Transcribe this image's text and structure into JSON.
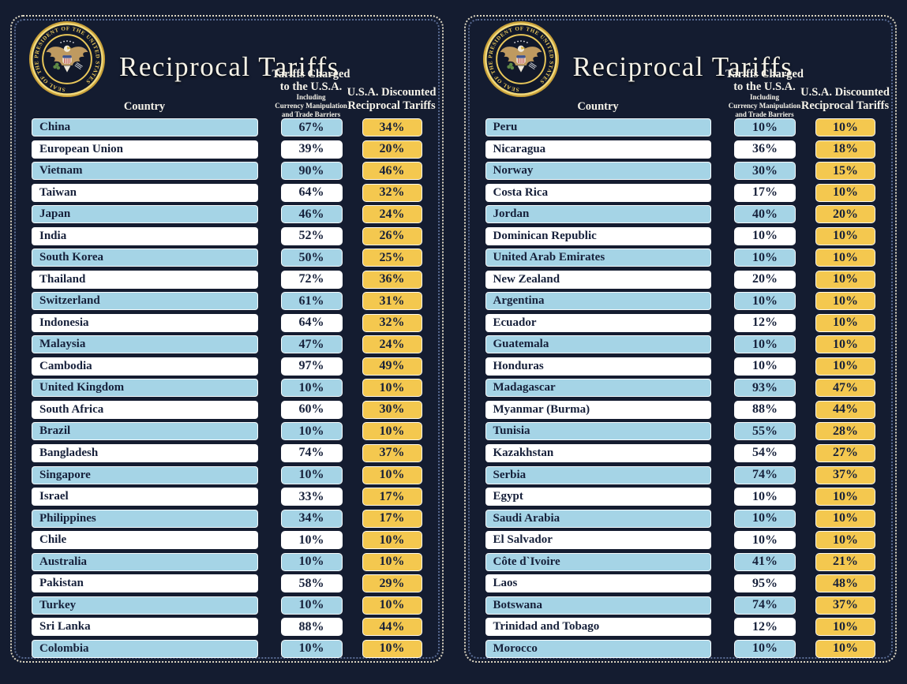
{
  "header": {
    "title": "Reciprocal Tariffs",
    "country_label": "Country",
    "charged_label_lines": [
      "Tariffs Charged",
      "to the U.S.A."
    ],
    "charged_sub_lines": [
      "Including",
      "Currency Manipulation",
      "and Trade Barriers"
    ],
    "discount_label_lines": [
      "U.S.A. Discounted",
      "Reciprocal Tariffs"
    ]
  },
  "seal": {
    "ring_text": "SEAL OF THE PRESIDENT OF THE UNITED STATES"
  },
  "unit": "%",
  "colors": {
    "background": "#121a2c",
    "panel": "#141c30",
    "row_blue": "#a5d4e6",
    "row_white": "#ffffff",
    "discount_yellow": "#f4c84f",
    "bar_text": "#16203a",
    "header_text": "#f5f2e8",
    "border_outer_dots": "#ddd6c2",
    "border_inner_dots": "#5a6c94",
    "seal_gold": "#e9c75a"
  },
  "chart_data": {
    "type": "table",
    "title": "Reciprocal Tariffs",
    "columns": [
      "Country",
      "Tariffs Charged to the U.S.A. Including Currency Manipulation and Trade Barriers",
      "U.S.A. Discounted Reciprocal Tariffs"
    ],
    "value_unit": "%",
    "panels": [
      {
        "rows": [
          [
            "China",
            67,
            34
          ],
          [
            "European Union",
            39,
            20
          ],
          [
            "Vietnam",
            90,
            46
          ],
          [
            "Taiwan",
            64,
            32
          ],
          [
            "Japan",
            46,
            24
          ],
          [
            "India",
            52,
            26
          ],
          [
            "South Korea",
            50,
            25
          ],
          [
            "Thailand",
            72,
            36
          ],
          [
            "Switzerland",
            61,
            31
          ],
          [
            "Indonesia",
            64,
            32
          ],
          [
            "Malaysia",
            47,
            24
          ],
          [
            "Cambodia",
            97,
            49
          ],
          [
            "United Kingdom",
            10,
            10
          ],
          [
            "South Africa",
            60,
            30
          ],
          [
            "Brazil",
            10,
            10
          ],
          [
            "Bangladesh",
            74,
            37
          ],
          [
            "Singapore",
            10,
            10
          ],
          [
            "Israel",
            33,
            17
          ],
          [
            "Philippines",
            34,
            17
          ],
          [
            "Chile",
            10,
            10
          ],
          [
            "Australia",
            10,
            10
          ],
          [
            "Pakistan",
            58,
            29
          ],
          [
            "Turkey",
            10,
            10
          ],
          [
            "Sri Lanka",
            88,
            44
          ],
          [
            "Colombia",
            10,
            10
          ]
        ]
      },
      {
        "rows": [
          [
            "Peru",
            10,
            10
          ],
          [
            "Nicaragua",
            36,
            18
          ],
          [
            "Norway",
            30,
            15
          ],
          [
            "Costa Rica",
            17,
            10
          ],
          [
            "Jordan",
            40,
            20
          ],
          [
            "Dominican Republic",
            10,
            10
          ],
          [
            "United Arab Emirates",
            10,
            10
          ],
          [
            "New Zealand",
            20,
            10
          ],
          [
            "Argentina",
            10,
            10
          ],
          [
            "Ecuador",
            12,
            10
          ],
          [
            "Guatemala",
            10,
            10
          ],
          [
            "Honduras",
            10,
            10
          ],
          [
            "Madagascar",
            93,
            47
          ],
          [
            "Myanmar (Burma)",
            88,
            44
          ],
          [
            "Tunisia",
            55,
            28
          ],
          [
            "Kazakhstan",
            54,
            27
          ],
          [
            "Serbia",
            74,
            37
          ],
          [
            "Egypt",
            10,
            10
          ],
          [
            "Saudi Arabia",
            10,
            10
          ],
          [
            "El Salvador",
            10,
            10
          ],
          [
            "Côte d`Ivoire",
            41,
            21
          ],
          [
            "Laos",
            95,
            48
          ],
          [
            "Botswana",
            74,
            37
          ],
          [
            "Trinidad and Tobago",
            12,
            10
          ],
          [
            "Morocco",
            10,
            10
          ]
        ]
      }
    ]
  }
}
